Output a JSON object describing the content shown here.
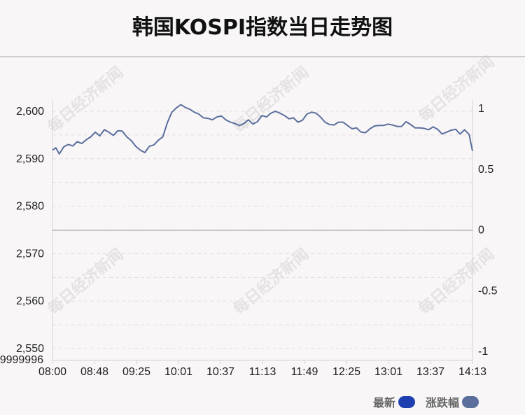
{
  "title": "韩国KOSPI指数当日走势图",
  "watermark": "每日经济新闻",
  "legend": [
    {
      "label": "最新",
      "color": "#1d3fb0"
    },
    {
      "label": "涨跌幅",
      "color": "#5a6f9c"
    }
  ],
  "chart_data": {
    "type": "line",
    "x_ticks": [
      "08:00",
      "08:48",
      "09:25",
      "10:01",
      "10:37",
      "11:13",
      "11:49",
      "12:25",
      "13:01",
      "13:37",
      "14:13"
    ],
    "y_left_ticks": [
      "2,550",
      "2,560",
      "2,570",
      "2,580",
      "2,590",
      "2,600"
    ],
    "y_left_min_label": "9999996",
    "y_right_ticks": [
      "-1",
      "-0.5",
      "0",
      "0.5",
      "1"
    ],
    "ylim_left": [
      2547.5,
      2602.5
    ],
    "ylim_right": [
      -1.0,
      1.0
    ],
    "xlim_minutes": [
      0,
      373
    ],
    "zero_line_level": 2574.9,
    "grid": true,
    "series": [
      {
        "color": "#5a6f9c",
        "x": [
          0,
          3,
          6,
          10,
          14,
          18,
          22,
          26,
          30,
          34,
          38,
          42,
          46,
          50,
          54,
          58,
          62,
          66,
          70,
          74,
          78,
          82,
          86,
          90,
          94,
          98,
          102,
          106,
          110,
          114,
          118,
          122,
          126,
          130,
          134,
          138,
          142,
          146,
          150,
          154,
          158,
          162,
          166,
          170,
          174,
          178,
          182,
          186,
          190,
          194,
          198,
          202,
          206,
          210,
          214,
          218,
          222,
          226,
          230,
          234,
          238,
          242,
          246,
          250,
          254,
          258,
          262,
          266,
          270,
          274,
          278,
          282,
          286,
          290,
          294,
          298,
          302,
          306,
          310,
          314,
          318,
          322,
          326,
          330,
          334,
          338,
          342,
          346,
          350,
          354,
          358,
          362,
          366,
          370,
          373
        ],
        "values": [
          2591.8,
          2592.3,
          2591.0,
          2592.5,
          2593.0,
          2592.7,
          2593.6,
          2593.2,
          2594.0,
          2594.6,
          2595.6,
          2594.8,
          2596.1,
          2595.6,
          2594.9,
          2595.9,
          2595.8,
          2594.6,
          2593.8,
          2592.6,
          2591.8,
          2591.3,
          2592.6,
          2592.9,
          2593.9,
          2594.6,
          2597.6,
          2599.8,
          2600.7,
          2601.4,
          2600.8,
          2600.4,
          2599.8,
          2599.4,
          2598.6,
          2598.5,
          2598.2,
          2598.8,
          2599.0,
          2598.2,
          2597.7,
          2597.4,
          2597.0,
          2597.4,
          2598.2,
          2597.3,
          2597.8,
          2599.1,
          2598.8,
          2599.6,
          2600.0,
          2599.6,
          2599.1,
          2598.4,
          2598.6,
          2597.7,
          2598.1,
          2599.4,
          2599.8,
          2599.6,
          2598.8,
          2597.7,
          2597.2,
          2597.1,
          2597.7,
          2597.7,
          2597.0,
          2596.3,
          2596.5,
          2595.6,
          2595.5,
          2596.3,
          2596.9,
          2597.0,
          2597.0,
          2597.3,
          2597.1,
          2596.8,
          2596.8,
          2597.8,
          2597.2,
          2596.5,
          2596.5,
          2596.4,
          2596.1,
          2596.7,
          2596.2,
          2595.2,
          2595.6,
          2596.0,
          2596.2,
          2595.2,
          2596.1,
          2595.1,
          2591.6
        ]
      }
    ]
  }
}
